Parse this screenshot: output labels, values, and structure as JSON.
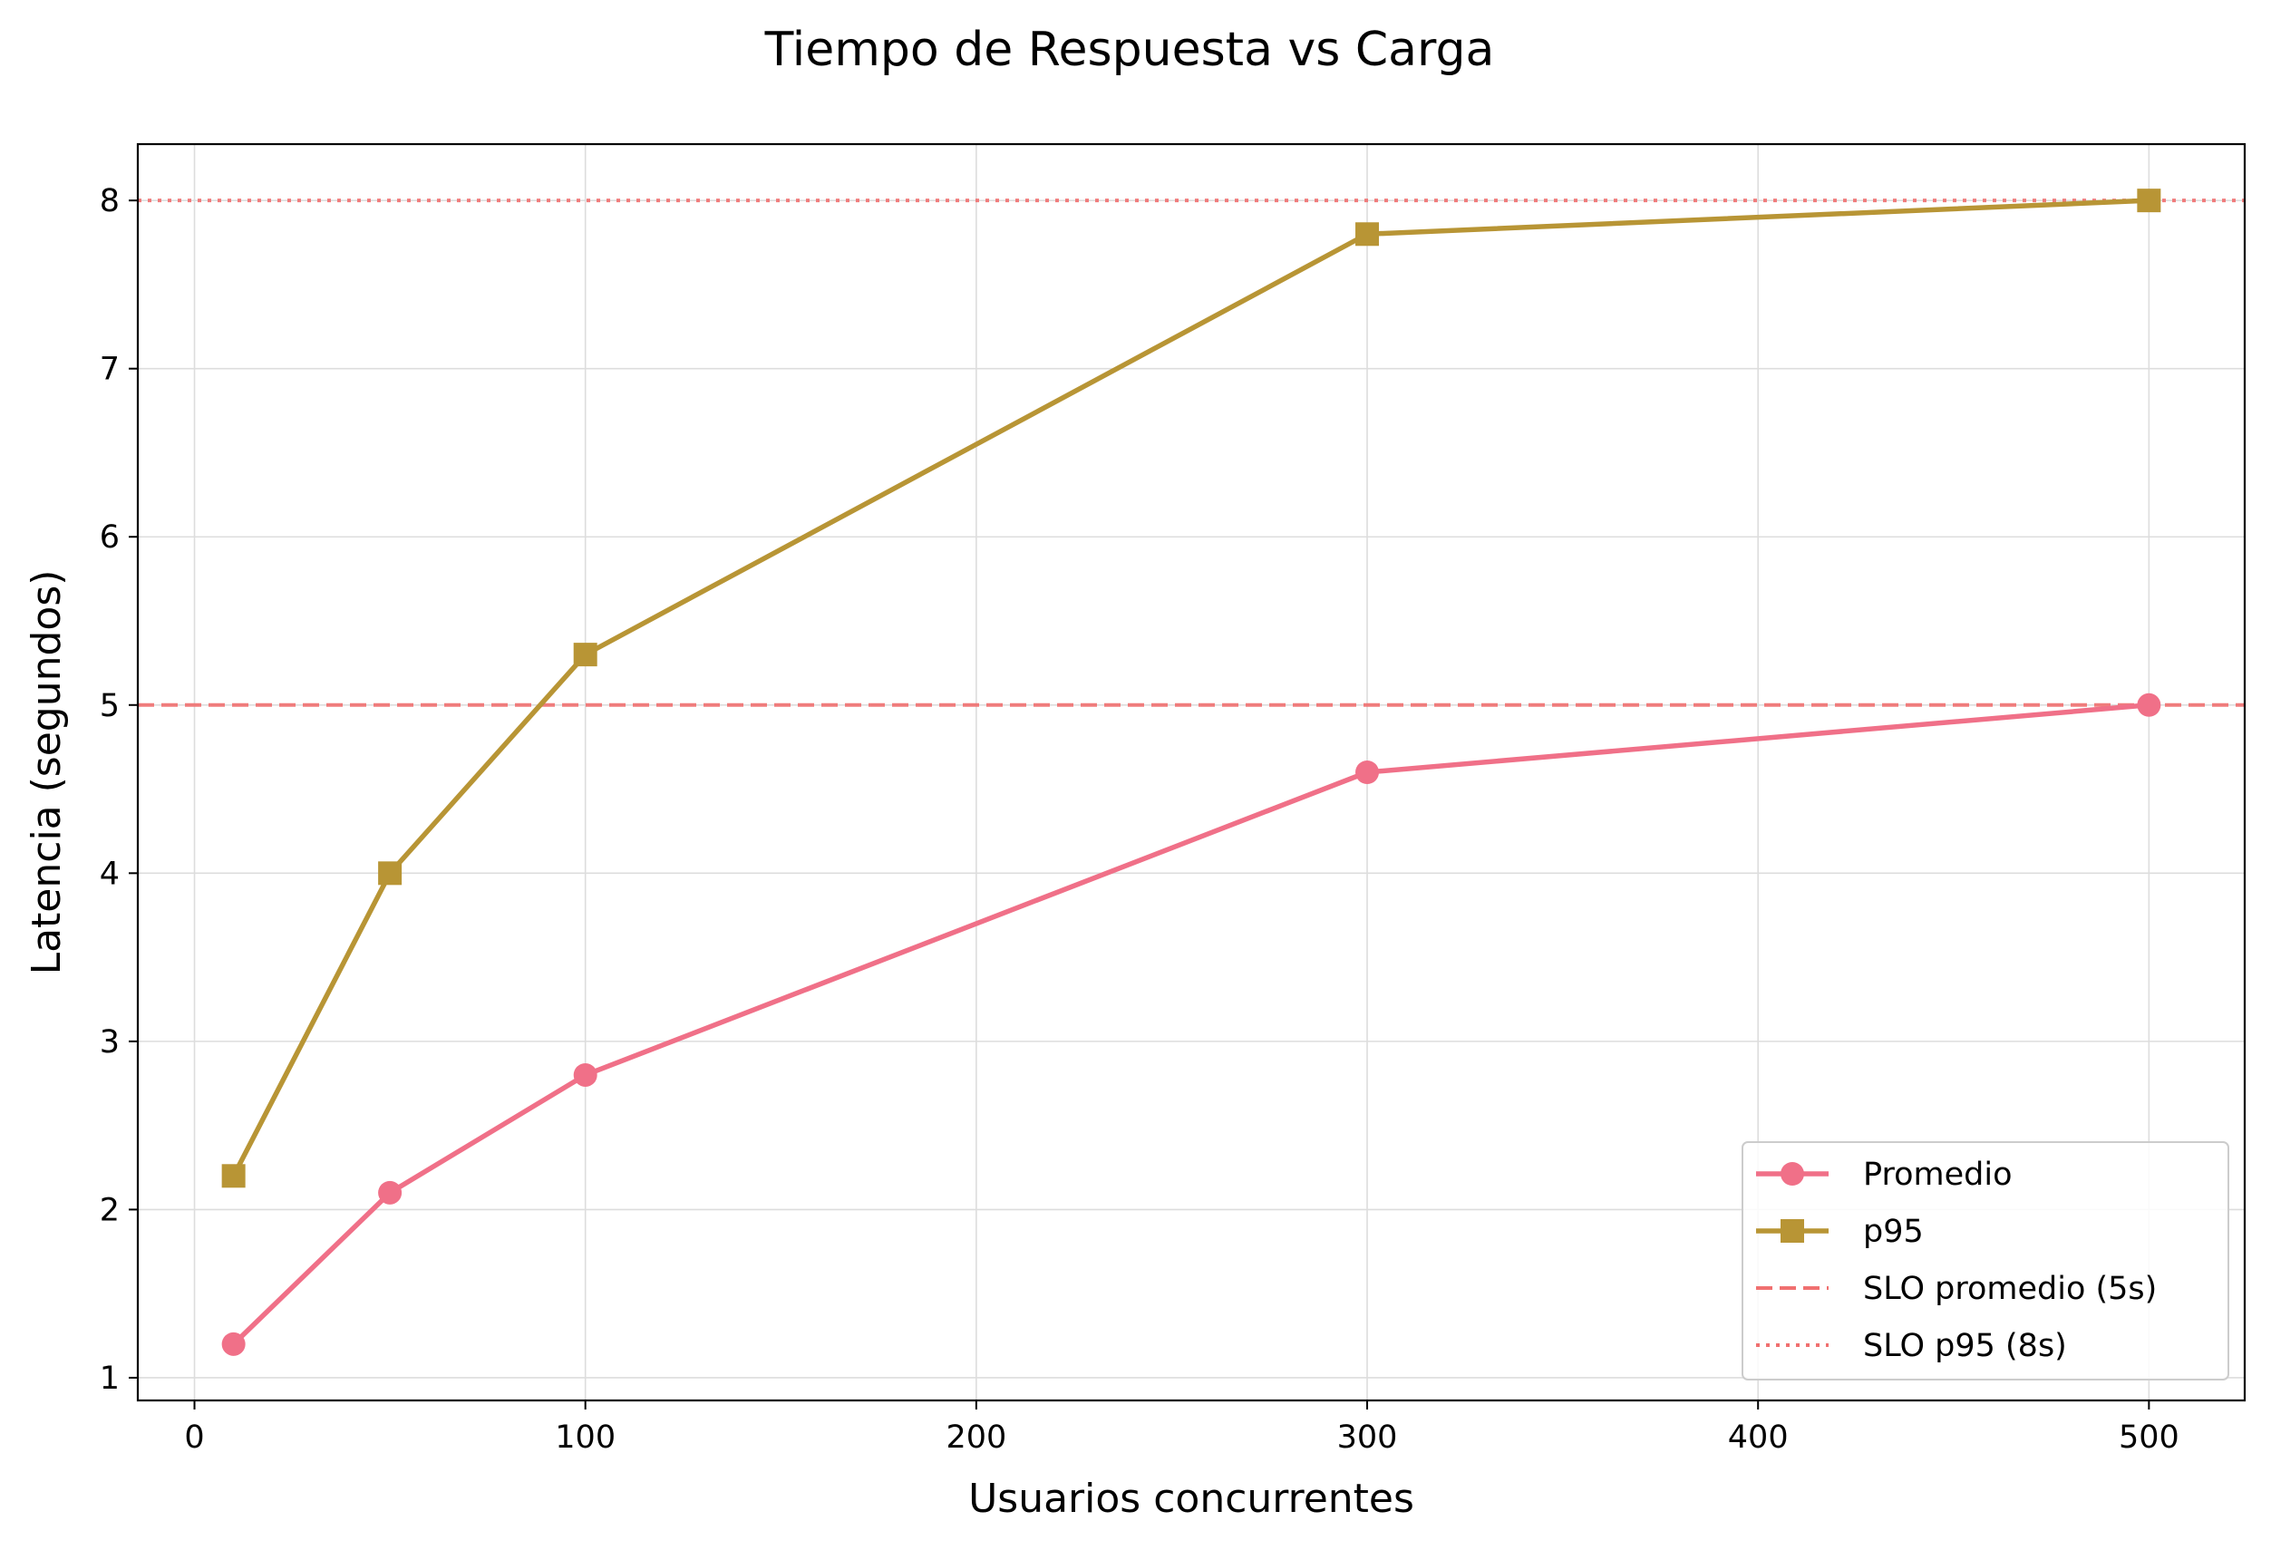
{
  "chart_data": {
    "type": "line",
    "title": "Tiempo de Respuesta vs Carga",
    "xlabel": "Usuarios concurrentes",
    "ylabel": "Latencia (segundos)",
    "xlim": [
      -14.5,
      524.5
    ],
    "ylim": [
      0.865,
      8.335
    ],
    "xticks": [
      0,
      100,
      200,
      300,
      400,
      500
    ],
    "yticks": [
      1,
      2,
      3,
      4,
      5,
      6,
      7,
      8
    ],
    "grid": true,
    "legend_position": "lower-right",
    "x": [
      10,
      50,
      100,
      300,
      500
    ],
    "series": [
      {
        "name": "Promedio",
        "values": [
          1.2,
          2.1,
          2.8,
          4.6,
          5.0
        ],
        "color": "#f07088",
        "marker": "circle"
      },
      {
        "name": "p95",
        "values": [
          2.2,
          4.0,
          5.3,
          7.8,
          8.0
        ],
        "color": "#b89535",
        "marker": "square"
      }
    ],
    "reference_lines": [
      {
        "name": "SLO promedio (5s)",
        "y": 5,
        "style": "dashed",
        "color": "#f07070"
      },
      {
        "name": "SLO p95 (8s)",
        "y": 8,
        "style": "dotted",
        "color": "#f07070"
      }
    ]
  }
}
